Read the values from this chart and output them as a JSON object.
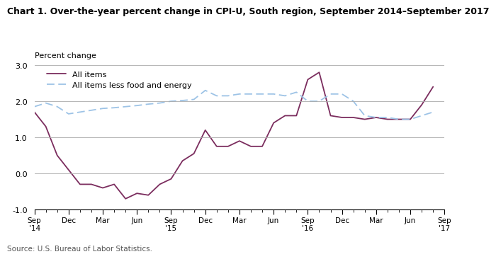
{
  "title": "Chart 1. Over-the-year percent change in CPI-U, South region, September 2014–September 2017",
  "ylabel": "Percent change",
  "source": "Source: U.S. Bureau of Labor Statistics.",
  "ylim": [
    -1.0,
    3.0
  ],
  "yticks": [
    -1.0,
    0.0,
    1.0,
    2.0,
    3.0
  ],
  "all_items": [
    1.7,
    1.3,
    0.5,
    0.1,
    -0.3,
    -0.3,
    -0.4,
    -0.3,
    -0.7,
    -0.55,
    -0.6,
    -0.3,
    -0.15,
    0.35,
    0.55,
    1.2,
    0.75,
    0.75,
    0.9,
    0.75,
    0.75,
    1.4,
    1.6,
    1.6,
    2.6,
    2.8,
    1.6,
    1.55,
    1.55,
    1.5,
    1.55,
    1.5,
    1.5,
    1.5,
    1.9,
    2.4
  ],
  "all_items_less": [
    1.85,
    1.95,
    1.85,
    1.65,
    1.7,
    1.75,
    1.8,
    1.82,
    1.85,
    1.88,
    1.92,
    1.95,
    2.0,
    2.02,
    2.05,
    2.3,
    2.15,
    2.15,
    2.2,
    2.2,
    2.2,
    2.2,
    2.15,
    2.25,
    2.0,
    2.0,
    2.2,
    2.2,
    2.0,
    1.6,
    1.55,
    1.55,
    1.5,
    1.5,
    1.6,
    1.7
  ],
  "all_items_color": "#7B2D5E",
  "all_items_less_color": "#9DC3E6",
  "tick_labels": [
    "Sep\n'14",
    "Dec",
    "Mar",
    "Jun",
    "Sep\n'15",
    "Dec",
    "Mar",
    "Jun",
    "Sep\n'16",
    "Dec",
    "Mar",
    "Jun",
    "Sep\n'17"
  ],
  "tick_positions": [
    0,
    3,
    6,
    9,
    12,
    15,
    18,
    21,
    24,
    27,
    30,
    33,
    36
  ]
}
